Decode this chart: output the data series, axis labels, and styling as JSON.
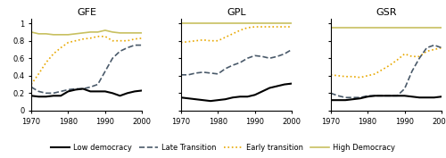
{
  "titles": [
    "GFE",
    "GPL",
    "GSR"
  ],
  "x": [
    1970,
    1972,
    1974,
    1976,
    1978,
    1980,
    1982,
    1984,
    1986,
    1988,
    1990,
    1992,
    1994,
    1996,
    1998,
    2000
  ],
  "GFE": {
    "low": [
      0.17,
      0.16,
      0.16,
      0.17,
      0.17,
      0.22,
      0.24,
      0.25,
      0.22,
      0.22,
      0.22,
      0.2,
      0.17,
      0.2,
      0.22,
      0.23
    ],
    "late": [
      0.27,
      0.22,
      0.2,
      0.2,
      0.22,
      0.24,
      0.25,
      0.25,
      0.27,
      0.3,
      0.45,
      0.6,
      0.68,
      0.72,
      0.75,
      0.75
    ],
    "early": [
      0.3,
      0.42,
      0.55,
      0.65,
      0.72,
      0.78,
      0.8,
      0.82,
      0.83,
      0.85,
      0.85,
      0.8,
      0.8,
      0.8,
      0.82,
      0.83
    ],
    "high": [
      0.9,
      0.88,
      0.88,
      0.87,
      0.87,
      0.87,
      0.88,
      0.89,
      0.9,
      0.9,
      0.92,
      0.9,
      0.89,
      0.89,
      0.89,
      0.89
    ]
  },
  "GPL": {
    "low": [
      0.15,
      0.14,
      0.13,
      0.12,
      0.11,
      0.12,
      0.13,
      0.15,
      0.16,
      0.16,
      0.18,
      0.22,
      0.26,
      0.28,
      0.3,
      0.31
    ],
    "late": [
      0.41,
      0.41,
      0.43,
      0.44,
      0.43,
      0.42,
      0.48,
      0.52,
      0.55,
      0.6,
      0.63,
      0.62,
      0.6,
      0.62,
      0.65,
      0.7
    ],
    "early": [
      0.78,
      0.79,
      0.8,
      0.81,
      0.8,
      0.8,
      0.84,
      0.88,
      0.92,
      0.95,
      0.96,
      0.96,
      0.96,
      0.96,
      0.96,
      0.96
    ],
    "high": [
      1.0,
      1.0,
      1.0,
      1.0,
      1.0,
      1.0,
      1.0,
      1.0,
      1.0,
      1.0,
      1.0,
      1.0,
      1.0,
      1.0,
      1.0,
      1.0
    ]
  },
  "GSR": {
    "low": [
      0.12,
      0.12,
      0.12,
      0.13,
      0.14,
      0.16,
      0.17,
      0.17,
      0.17,
      0.17,
      0.17,
      0.16,
      0.15,
      0.15,
      0.15,
      0.16
    ],
    "late": [
      0.2,
      0.17,
      0.15,
      0.15,
      0.15,
      0.17,
      0.17,
      0.17,
      0.17,
      0.17,
      0.25,
      0.45,
      0.6,
      0.72,
      0.75,
      0.72
    ],
    "early": [
      0.41,
      0.4,
      0.39,
      0.39,
      0.38,
      0.4,
      0.42,
      0.47,
      0.52,
      0.58,
      0.65,
      0.62,
      0.62,
      0.68,
      0.7,
      0.72
    ],
    "high": [
      0.95,
      0.95,
      0.95,
      0.95,
      0.95,
      0.95,
      0.95,
      0.95,
      0.95,
      0.95,
      0.95,
      0.95,
      0.95,
      0.95,
      0.95,
      0.95
    ]
  },
  "colors": {
    "low": "#000000",
    "late": "#4a5a6a",
    "early": "#e8a800",
    "high": "#c8c060"
  },
  "legend_labels": [
    "Low democracy",
    "Late Transition",
    "Early transition",
    "High Democracy"
  ]
}
